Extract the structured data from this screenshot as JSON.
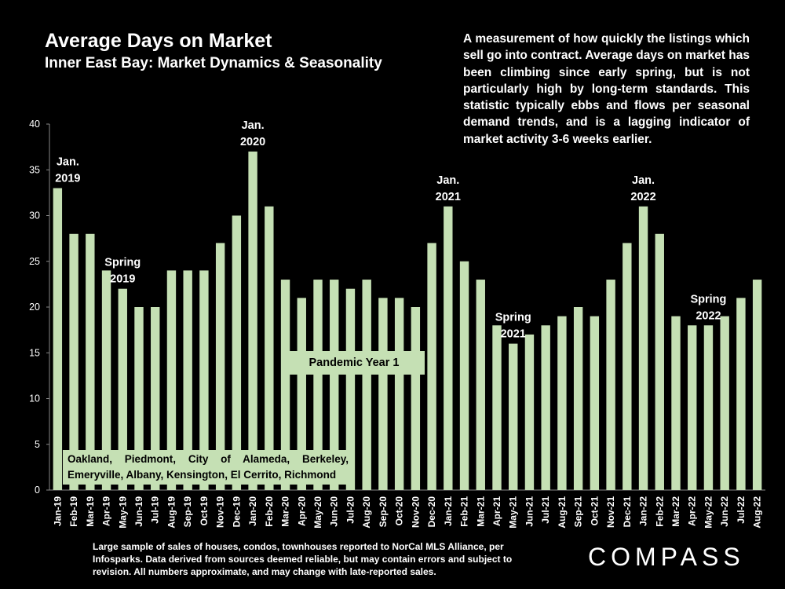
{
  "title": "Average Days on Market",
  "subtitle": "Inner East Bay: Market Dynamics & Seasonality",
  "description": "A measurement of how quickly the listings which sell go into contract. Average days on market has been climbing since early spring, but is not particularly high by long-term standards. This statistic typically ebbs and flows per seasonal demand trends, and is a lagging indicator of market activity 3-6 weeks earlier.",
  "footer": "Large sample of sales of houses, condos, townhouses reported to NorCal MLS Alliance, per Infosparks. Data derived from sources deemed reliable, but may contain errors and subject to revision. All numbers approximate, and may change with late-reported sales.",
  "logo": "COMPASS",
  "pandemic_label": "Pandemic Year 1",
  "cities_label": "Oakland, Piedmont, City of Alameda, Berkeley, Emeryville, Albany, Kensington, El Cerrito, Richmond",
  "colors": {
    "bar": "#c5e0b4",
    "background": "#000000",
    "text": "#ffffff"
  },
  "chart_data": {
    "type": "bar",
    "categories": [
      "Jan-19",
      "Feb-19",
      "Mar-19",
      "Apr-19",
      "May-19",
      "Jun-19",
      "Jul-19",
      "Aug-19",
      "Sep-19",
      "Oct-19",
      "Nov-19",
      "Dec-19",
      "Jan-20",
      "Feb-20",
      "Mar-20",
      "Apr-20",
      "May-20",
      "Jun-20",
      "Jul-20",
      "Aug-20",
      "Sep-20",
      "Oct-20",
      "Nov-20",
      "Dec-20",
      "Jan-21",
      "Feb-21",
      "Mar-21",
      "Apr-21",
      "May-21",
      "Jun-21",
      "Jul-21",
      "Aug-21",
      "Sep-21",
      "Oct-21",
      "Nov-21",
      "Dec-21",
      "Jan-22",
      "Feb-22",
      "Mar-22",
      "Apr-22",
      "May-22",
      "Jun-22",
      "Jul-22",
      "Aug-22"
    ],
    "values": [
      33,
      28,
      28,
      24,
      22,
      20,
      20,
      24,
      24,
      24,
      27,
      30,
      37,
      31,
      23,
      21,
      23,
      23,
      22,
      23,
      21,
      21,
      20,
      27,
      31,
      25,
      23,
      18,
      16,
      17,
      18,
      19,
      20,
      19,
      23,
      27,
      31,
      28,
      19,
      18,
      18,
      19,
      21,
      23
    ],
    "ylim": [
      0,
      40
    ],
    "yticks": [
      0,
      5,
      10,
      15,
      20,
      25,
      30,
      35,
      40
    ],
    "grid": false,
    "annotations": [
      {
        "index": 0,
        "lines": [
          "Jan.",
          "2019"
        ]
      },
      {
        "index": 4,
        "lines": [
          "Spring",
          "2019"
        ]
      },
      {
        "index": 12,
        "lines": [
          "Jan.",
          "2020"
        ]
      },
      {
        "index": 24,
        "lines": [
          "Jan.",
          "2021"
        ]
      },
      {
        "index": 28,
        "lines": [
          "Spring",
          "2021"
        ]
      },
      {
        "index": 36,
        "lines": [
          "Jan.",
          "2022"
        ]
      },
      {
        "index": 40,
        "lines": [
          "Spring",
          "2022"
        ]
      }
    ]
  }
}
